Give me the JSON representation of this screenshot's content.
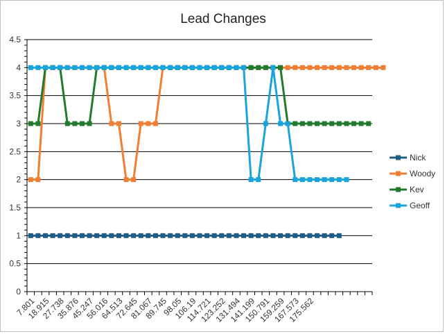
{
  "chart_data": {
    "type": "line",
    "title": "Lead Changes",
    "xlabel": "",
    "ylabel": "",
    "ylim": [
      0,
      4.5
    ],
    "y_ticks": [
      "0",
      "0.5",
      "1",
      "1.5",
      "2",
      "2.5",
      "3",
      "3.5",
      "4",
      "4.5"
    ],
    "grid": "horizontal",
    "legend_position": "right",
    "x_tick_labels": [
      "7.801",
      "18.915",
      "27.738",
      "35.876",
      "45.247",
      "56.016",
      "64.513",
      "72.645",
      "81.067",
      "89.745",
      "98.05",
      "106.19",
      "114.721",
      "123.252",
      "131.494",
      "141.199",
      "150.791",
      "159.259",
      "167.573",
      "175.562"
    ],
    "series": [
      {
        "name": "Nick",
        "color": "#1f5d86",
        "values": [
          1,
          1,
          1,
          1,
          1,
          1,
          1,
          1,
          1,
          1,
          1,
          1,
          1,
          1,
          1,
          1,
          1,
          1,
          1,
          1,
          1,
          1,
          1,
          1,
          1,
          1,
          1,
          1,
          1,
          1,
          1,
          1,
          1,
          1,
          1,
          1,
          1,
          1,
          1,
          1,
          1,
          1,
          1
        ]
      },
      {
        "name": "Woody",
        "color": "#f07f33",
        "values": [
          2,
          2,
          4,
          4,
          4,
          4,
          4,
          4,
          4,
          4,
          4,
          3,
          3,
          2,
          2,
          3,
          3,
          3,
          4,
          4,
          4,
          4,
          4,
          4,
          4,
          4,
          4,
          4,
          4,
          4,
          4,
          4,
          4,
          4,
          4,
          4,
          4,
          4,
          4,
          4,
          4,
          4,
          4,
          4,
          4,
          4,
          4,
          4,
          4
        ]
      },
      {
        "name": "Kev",
        "color": "#217a2e",
        "values": [
          3,
          3,
          4,
          4,
          4,
          3,
          3,
          3,
          3,
          4,
          4,
          4,
          4,
          4,
          4,
          4,
          4,
          4,
          4,
          4,
          4,
          4,
          4,
          4,
          4,
          4,
          4,
          4,
          4,
          4,
          4,
          4,
          4,
          4,
          4,
          3,
          3,
          3,
          3,
          3,
          3,
          3,
          3,
          3,
          3,
          3,
          3
        ]
      },
      {
        "name": "Geoff",
        "color": "#18a4dc",
        "values": [
          4,
          4,
          4,
          4,
          4,
          4,
          4,
          4,
          4,
          4,
          4,
          4,
          4,
          4,
          4,
          4,
          4,
          4,
          4,
          4,
          4,
          4,
          4,
          4,
          4,
          4,
          4,
          4,
          4,
          4,
          2,
          2,
          3,
          4,
          3,
          3,
          2,
          2,
          2,
          2,
          2,
          2,
          2,
          2
        ]
      }
    ]
  }
}
